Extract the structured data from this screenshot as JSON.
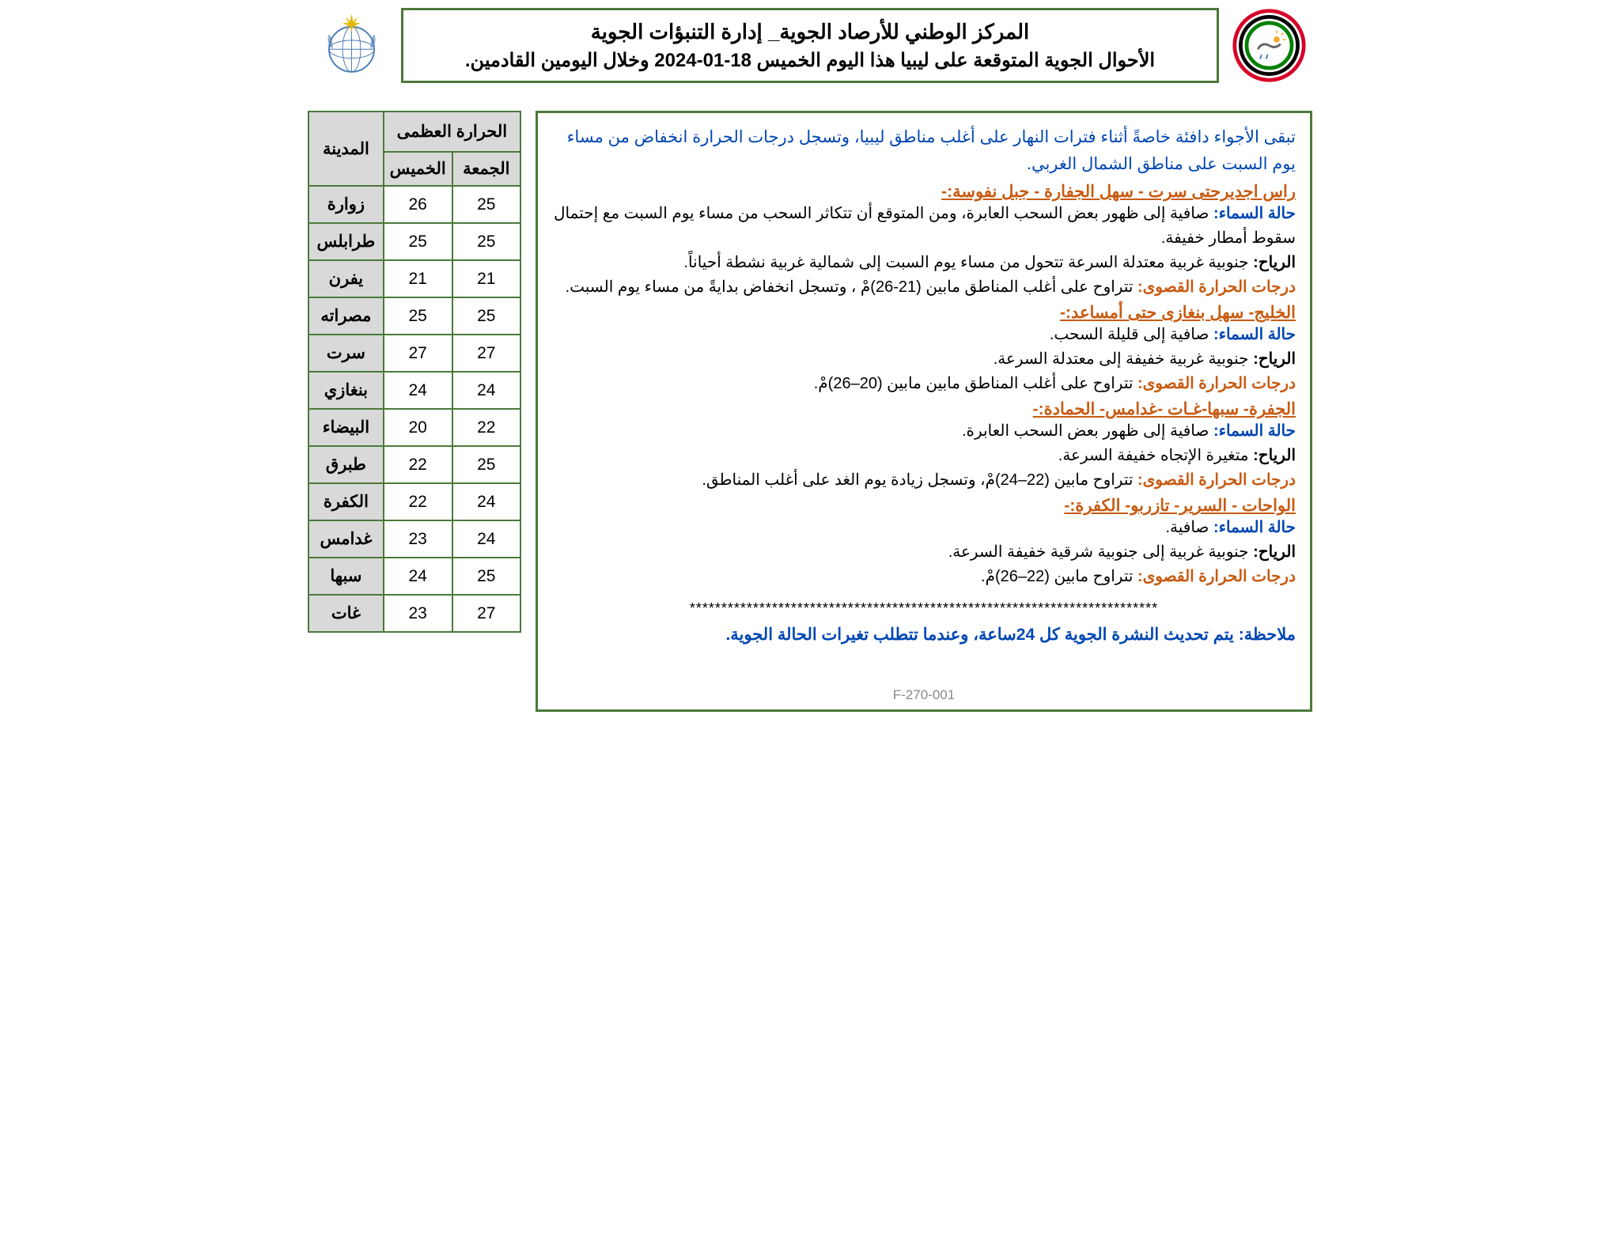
{
  "header": {
    "title1": "المركز الوطني للأرصاد الجوية_ إدارة التنبؤات الجوية",
    "title2": "الأحوال الجوية المتوقعة على ليبيا هذا اليوم الخميس 18-01-2024 وخلال اليومين القادمين."
  },
  "intro": "تبقى الأجواء دافئة خاصةً أثناء فترات النهار على أغلب مناطق ليبيا، وتسجل درجات الحرارة انخفاض من مساء يوم السبت على مناطق الشمال الغربي.",
  "labels": {
    "sky": "حالة السماء:",
    "wind": "الرياح:",
    "temp": "درجات الحرارة القصوى:"
  },
  "regions": [
    {
      "title": "راس اجديرحتى سرت - سهل الجفارة - جبل نفوسة:-",
      "sky": "صافية إلى ظهور بعض السحب العابرة، ومن المتوقع أن تتكاثر السحب من مساء يوم السبت مع إحتمال سقوط أمطار خفيفة.",
      "wind": "جنوبية غربية معتدلة السرعة تتحول من مساء يوم السبت إلى شمالية غربية نشطة أحياناً.",
      "temp": "تتراوح على أغلب المناطق مابين (21-26)مْ ، وتسجل انخفاض بدايةً من مساء يوم السبت."
    },
    {
      "title": "الخليج- سهل بنغازى حتى أمساعد:-",
      "sky": "صافية إلى قليلة السحب.",
      "wind": "جنوبية غربية خفيفة إلى معتدلة السرعة.",
      "temp": "تتراوح على أغلب المناطق مابين مابين (20–26)مْ."
    },
    {
      "title": "الجفرة- سبها-غـات -غدامس- الحمادة:-",
      "sky": "صافية إلى ظهور بعض السحب العابرة.",
      "wind": "متغيرة الإتجاه خفيفة السرعة.",
      "temp": "تتراوح مابين (22–24)مْ، وتسجل زيادة يوم الغد على أغلب المناطق."
    },
    {
      "title": "الواحات - السرير- تازربو- الكفرة:-",
      "sky": "صافية.",
      "wind": "جنوبية غربية إلى جنوبية شرقية خفيفة السرعة.",
      "temp": "تتراوح مابين (22–26)مْ."
    }
  ],
  "note_label": "ملاحظة:",
  "note_text": "يتم تحديث النشرة الجوية كل 24ساعة، وعندما تتطلب تغيرات الحالة الجوية.",
  "form_code": "F-270-001",
  "table": {
    "header_max": "الحرارة العظمى",
    "header_city": "المدينة",
    "header_thu": "الخميس",
    "header_fri": "الجمعة",
    "rows": [
      {
        "city": "زوارة",
        "thu": "26",
        "fri": "25"
      },
      {
        "city": "طرابلس",
        "thu": "25",
        "fri": "25"
      },
      {
        "city": "يفرن",
        "thu": "21",
        "fri": "21"
      },
      {
        "city": "مصراته",
        "thu": "25",
        "fri": "25"
      },
      {
        "city": "سرت",
        "thu": "27",
        "fri": "27"
      },
      {
        "city": "بنغازي",
        "thu": "24",
        "fri": "24"
      },
      {
        "city": "البيضاء",
        "thu": "20",
        "fri": "22"
      },
      {
        "city": "طبرق",
        "thu": "22",
        "fri": "25"
      },
      {
        "city": "الكفرة",
        "thu": "22",
        "fri": "24"
      },
      {
        "city": "غدامس",
        "thu": "23",
        "fri": "24"
      },
      {
        "city": "سبها",
        "thu": "24",
        "fri": "25"
      },
      {
        "city": "غات",
        "thu": "23",
        "fri": "27"
      }
    ]
  },
  "colors": {
    "border": "#4b7a3a",
    "blue_text": "#0047b3",
    "orange_text": "#c75b12",
    "gray_bg": "#d9d9d9"
  }
}
